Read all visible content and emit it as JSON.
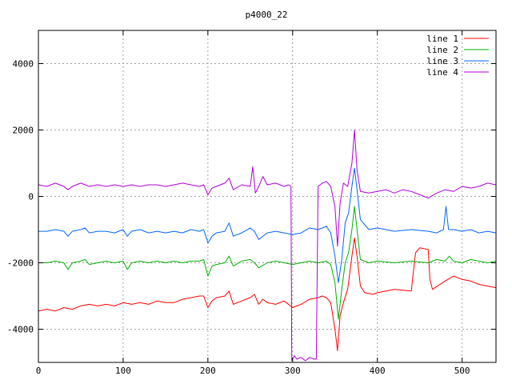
{
  "chart_data": {
    "type": "line",
    "title": "p4000_22",
    "xlabel": "",
    "ylabel": "",
    "xlim": [
      0,
      540
    ],
    "ylim": [
      -5000,
      5000
    ],
    "xticks": [
      0,
      100,
      200,
      300,
      400,
      500
    ],
    "yticks": [
      -4000,
      -2000,
      0,
      2000,
      4000
    ],
    "xtick_labels": [
      "0",
      "100",
      "200",
      "300",
      "400",
      "500"
    ],
    "ytick_labels": [
      "-4000",
      "-2000",
      "0",
      "2000",
      "4000"
    ],
    "grid": true,
    "legend_position": "top-right",
    "series": [
      {
        "name": "line 1",
        "color": "#ff0000",
        "points": [
          [
            0,
            -3450
          ],
          [
            10,
            -3400
          ],
          [
            20,
            -3450
          ],
          [
            30,
            -3350
          ],
          [
            40,
            -3400
          ],
          [
            50,
            -3300
          ],
          [
            60,
            -3250
          ],
          [
            70,
            -3300
          ],
          [
            80,
            -3250
          ],
          [
            90,
            -3300
          ],
          [
            100,
            -3200
          ],
          [
            110,
            -3250
          ],
          [
            120,
            -3200
          ],
          [
            130,
            -3250
          ],
          [
            140,
            -3150
          ],
          [
            150,
            -3200
          ],
          [
            160,
            -3200
          ],
          [
            170,
            -3100
          ],
          [
            180,
            -3050
          ],
          [
            190,
            -3000
          ],
          [
            195,
            -3000
          ],
          [
            200,
            -3350
          ],
          [
            205,
            -3150
          ],
          [
            210,
            -3050
          ],
          [
            220,
            -3000
          ],
          [
            225,
            -2850
          ],
          [
            230,
            -3250
          ],
          [
            240,
            -3150
          ],
          [
            250,
            -3050
          ],
          [
            255,
            -2950
          ],
          [
            260,
            -3250
          ],
          [
            265,
            -3100
          ],
          [
            270,
            -3200
          ],
          [
            280,
            -3250
          ],
          [
            290,
            -3150
          ],
          [
            300,
            -3350
          ],
          [
            310,
            -3250
          ],
          [
            320,
            -3100
          ],
          [
            330,
            -3050
          ],
          [
            335,
            -3000
          ],
          [
            340,
            -3050
          ],
          [
            345,
            -3200
          ],
          [
            350,
            -4000
          ],
          [
            353,
            -4650
          ],
          [
            356,
            -3600
          ],
          [
            360,
            -3200
          ],
          [
            365,
            -2800
          ],
          [
            370,
            -1800
          ],
          [
            373,
            -1250
          ],
          [
            376,
            -1800
          ],
          [
            380,
            -2700
          ],
          [
            385,
            -2900
          ],
          [
            395,
            -2950
          ],
          [
            400,
            -2900
          ],
          [
            420,
            -2800
          ],
          [
            440,
            -2850
          ],
          [
            445,
            -1700
          ],
          [
            450,
            -1550
          ],
          [
            460,
            -1600
          ],
          [
            462,
            -2500
          ],
          [
            465,
            -2800
          ],
          [
            480,
            -2550
          ],
          [
            490,
            -2400
          ],
          [
            500,
            -2500
          ],
          [
            510,
            -2550
          ],
          [
            520,
            -2650
          ],
          [
            530,
            -2700
          ],
          [
            540,
            -2750
          ]
        ]
      },
      {
        "name": "line 2",
        "color": "#00b000",
        "points": [
          [
            0,
            -2000
          ],
          [
            10,
            -2000
          ],
          [
            20,
            -1950
          ],
          [
            30,
            -2000
          ],
          [
            35,
            -2200
          ],
          [
            40,
            -2000
          ],
          [
            50,
            -1950
          ],
          [
            55,
            -1900
          ],
          [
            60,
            -2050
          ],
          [
            70,
            -2000
          ],
          [
            80,
            -1950
          ],
          [
            90,
            -2000
          ],
          [
            100,
            -1950
          ],
          [
            105,
            -2200
          ],
          [
            110,
            -2000
          ],
          [
            120,
            -1950
          ],
          [
            130,
            -2000
          ],
          [
            140,
            -1950
          ],
          [
            150,
            -2000
          ],
          [
            160,
            -1950
          ],
          [
            170,
            -2000
          ],
          [
            180,
            -1950
          ],
          [
            190,
            -1950
          ],
          [
            195,
            -1900
          ],
          [
            200,
            -2400
          ],
          [
            205,
            -2100
          ],
          [
            210,
            -2050
          ],
          [
            220,
            -2000
          ],
          [
            225,
            -1800
          ],
          [
            230,
            -2100
          ],
          [
            240,
            -1950
          ],
          [
            250,
            -1900
          ],
          [
            255,
            -2000
          ],
          [
            260,
            -2150
          ],
          [
            270,
            -2000
          ],
          [
            280,
            -1950
          ],
          [
            290,
            -2000
          ],
          [
            300,
            -2050
          ],
          [
            310,
            -2000
          ],
          [
            320,
            -1950
          ],
          [
            330,
            -2000
          ],
          [
            340,
            -1950
          ],
          [
            345,
            -2050
          ],
          [
            350,
            -2600
          ],
          [
            354,
            -3700
          ],
          [
            358,
            -2800
          ],
          [
            362,
            -2000
          ],
          [
            366,
            -1700
          ],
          [
            370,
            -1000
          ],
          [
            373,
            -300
          ],
          [
            376,
            -1000
          ],
          [
            380,
            -1900
          ],
          [
            390,
            -2000
          ],
          [
            400,
            -1950
          ],
          [
            420,
            -2000
          ],
          [
            440,
            -1950
          ],
          [
            460,
            -2000
          ],
          [
            470,
            -1900
          ],
          [
            480,
            -1950
          ],
          [
            485,
            -1800
          ],
          [
            490,
            -1950
          ],
          [
            500,
            -2000
          ],
          [
            510,
            -1900
          ],
          [
            520,
            -1950
          ],
          [
            530,
            -2000
          ],
          [
            540,
            -1950
          ]
        ]
      },
      {
        "name": "line 3",
        "color": "#0066ff",
        "points": [
          [
            0,
            -1050
          ],
          [
            10,
            -1050
          ],
          [
            20,
            -1000
          ],
          [
            30,
            -1050
          ],
          [
            35,
            -1200
          ],
          [
            40,
            -1050
          ],
          [
            50,
            -1000
          ],
          [
            55,
            -950
          ],
          [
            60,
            -1100
          ],
          [
            70,
            -1050
          ],
          [
            80,
            -1050
          ],
          [
            90,
            -1100
          ],
          [
            100,
            -1000
          ],
          [
            105,
            -1200
          ],
          [
            110,
            -1050
          ],
          [
            120,
            -1000
          ],
          [
            130,
            -1100
          ],
          [
            140,
            -1050
          ],
          [
            150,
            -1100
          ],
          [
            160,
            -1050
          ],
          [
            170,
            -1100
          ],
          [
            180,
            -1000
          ],
          [
            190,
            -1050
          ],
          [
            195,
            -1000
          ],
          [
            200,
            -1400
          ],
          [
            205,
            -1200
          ],
          [
            210,
            -1100
          ],
          [
            220,
            -1050
          ],
          [
            225,
            -800
          ],
          [
            230,
            -1200
          ],
          [
            240,
            -1100
          ],
          [
            250,
            -950
          ],
          [
            255,
            -1050
          ],
          [
            260,
            -1300
          ],
          [
            270,
            -1100
          ],
          [
            280,
            -1050
          ],
          [
            290,
            -1100
          ],
          [
            300,
            -1150
          ],
          [
            310,
            -1100
          ],
          [
            320,
            -950
          ],
          [
            330,
            -1000
          ],
          [
            340,
            -900
          ],
          [
            345,
            -1100
          ],
          [
            350,
            -1800
          ],
          [
            354,
            -2600
          ],
          [
            358,
            -1900
          ],
          [
            362,
            -800
          ],
          [
            366,
            -500
          ],
          [
            370,
            300
          ],
          [
            373,
            850
          ],
          [
            376,
            200
          ],
          [
            380,
            -700
          ],
          [
            390,
            -1000
          ],
          [
            400,
            -950
          ],
          [
            420,
            -1050
          ],
          [
            440,
            -1000
          ],
          [
            460,
            -1050
          ],
          [
            470,
            -1100
          ],
          [
            478,
            -1000
          ],
          [
            481,
            -300
          ],
          [
            484,
            -1000
          ],
          [
            490,
            -1000
          ],
          [
            500,
            -1050
          ],
          [
            510,
            -1000
          ],
          [
            520,
            -1100
          ],
          [
            530,
            -1050
          ],
          [
            540,
            -1100
          ]
        ]
      },
      {
        "name": "line 4",
        "color": "#b000d8",
        "points": [
          [
            0,
            350
          ],
          [
            10,
            300
          ],
          [
            20,
            400
          ],
          [
            30,
            300
          ],
          [
            35,
            200
          ],
          [
            40,
            300
          ],
          [
            50,
            400
          ],
          [
            60,
            300
          ],
          [
            70,
            350
          ],
          [
            80,
            300
          ],
          [
            90,
            350
          ],
          [
            100,
            300
          ],
          [
            110,
            350
          ],
          [
            120,
            300
          ],
          [
            130,
            350
          ],
          [
            140,
            350
          ],
          [
            150,
            300
          ],
          [
            160,
            350
          ],
          [
            170,
            400
          ],
          [
            180,
            350
          ],
          [
            190,
            300
          ],
          [
            195,
            350
          ],
          [
            200,
            50
          ],
          [
            205,
            250
          ],
          [
            210,
            300
          ],
          [
            220,
            400
          ],
          [
            225,
            550
          ],
          [
            230,
            200
          ],
          [
            240,
            350
          ],
          [
            250,
            300
          ],
          [
            253,
            900
          ],
          [
            256,
            100
          ],
          [
            260,
            300
          ],
          [
            265,
            600
          ],
          [
            270,
            350
          ],
          [
            280,
            400
          ],
          [
            290,
            300
          ],
          [
            295,
            350
          ],
          [
            298,
            300
          ],
          [
            299,
            -4950
          ],
          [
            302,
            -4800
          ],
          [
            305,
            -4900
          ],
          [
            310,
            -4850
          ],
          [
            315,
            -4950
          ],
          [
            320,
            -4850
          ],
          [
            325,
            -4900
          ],
          [
            328,
            -4900
          ],
          [
            330,
            300
          ],
          [
            335,
            400
          ],
          [
            340,
            450
          ],
          [
            345,
            300
          ],
          [
            350,
            -300
          ],
          [
            353,
            -1500
          ],
          [
            356,
            -200
          ],
          [
            360,
            400
          ],
          [
            365,
            300
          ],
          [
            370,
            1000
          ],
          [
            373,
            2000
          ],
          [
            376,
            800
          ],
          [
            380,
            150
          ],
          [
            390,
            100
          ],
          [
            400,
            150
          ],
          [
            410,
            200
          ],
          [
            420,
            100
          ],
          [
            430,
            200
          ],
          [
            440,
            150
          ],
          [
            450,
            50
          ],
          [
            460,
            -50
          ],
          [
            470,
            100
          ],
          [
            480,
            200
          ],
          [
            490,
            150
          ],
          [
            500,
            300
          ],
          [
            510,
            250
          ],
          [
            520,
            300
          ],
          [
            530,
            400
          ],
          [
            540,
            350
          ]
        ]
      }
    ]
  }
}
